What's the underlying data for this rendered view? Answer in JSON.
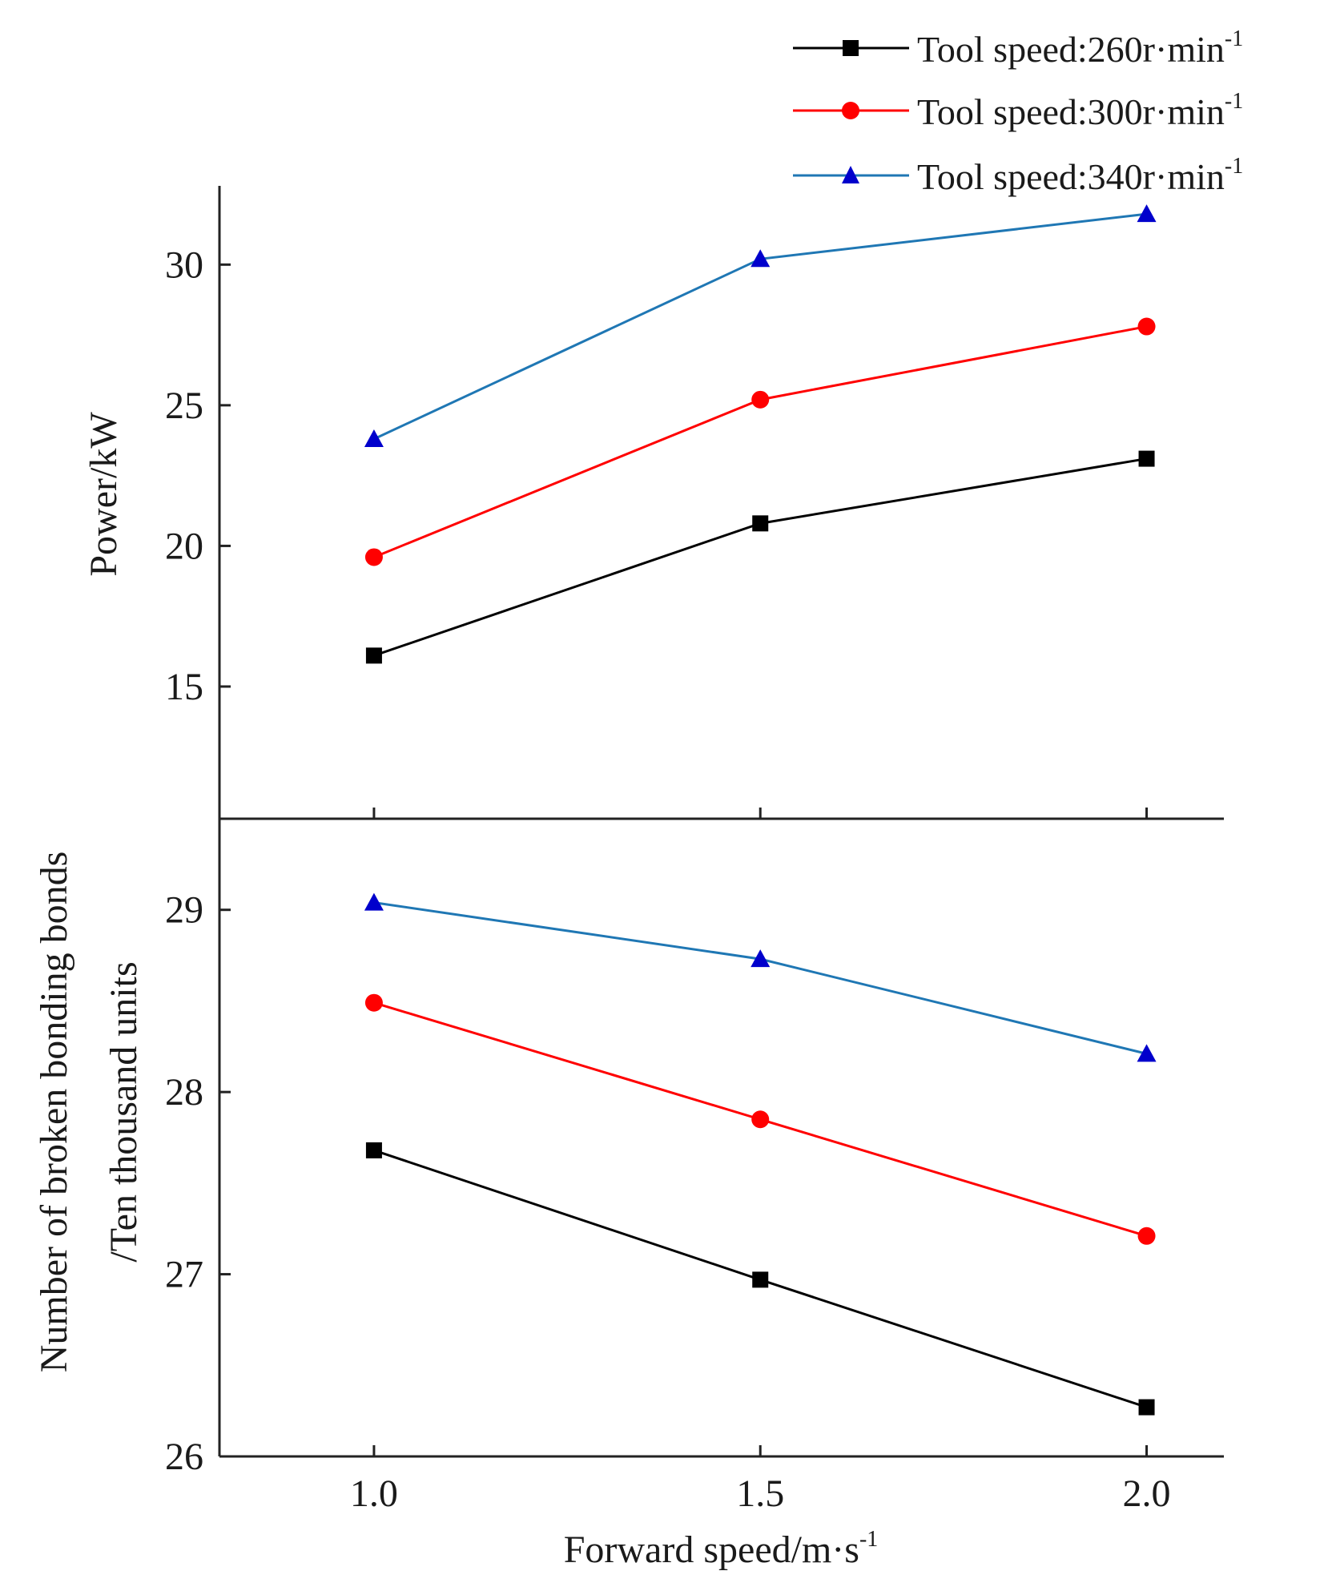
{
  "chart_data": [
    {
      "type": "line",
      "panel": "top",
      "x": [
        1.0,
        1.5,
        2.0
      ],
      "xlim": [
        0.8,
        2.1
      ],
      "ylim": [
        10.3,
        32.8
      ],
      "yticks": [
        15,
        20,
        25,
        30
      ],
      "ytick_labels": [
        "15",
        "20",
        "25",
        "30"
      ],
      "ylabel": "Power/kW",
      "series": [
        {
          "name": "Tool speed:260r·min-1",
          "marker": "square",
          "color": "#000000",
          "values": [
            16.1,
            20.8,
            23.1
          ]
        },
        {
          "name": "Tool speed:300r·min-1",
          "marker": "circle",
          "color": "#ff0000",
          "values": [
            19.6,
            25.2,
            27.8
          ]
        },
        {
          "name": "Tool speed:340r·min-1",
          "marker": "triangle",
          "color": "#0000cc",
          "line_color": "#1f77b4",
          "values": [
            23.8,
            30.2,
            31.8
          ]
        }
      ]
    },
    {
      "type": "line",
      "panel": "bottom",
      "x": [
        1.0,
        1.5,
        2.0
      ],
      "xlim": [
        0.8,
        2.1
      ],
      "xticks": [
        1.0,
        1.5,
        2.0
      ],
      "xtick_labels": [
        "1.0",
        "1.5",
        "2.0"
      ],
      "xlabel": "Forward speed/m·s",
      "xlabel_sup": "-1",
      "ylim": [
        26.0,
        29.5
      ],
      "yticks": [
        26,
        27,
        28,
        29
      ],
      "ytick_labels": [
        "26",
        "27",
        "28",
        "29"
      ],
      "ylabel_lines": [
        "Number of broken bonding bonds",
        "/Ten thousand units"
      ],
      "series": [
        {
          "name": "Tool speed:260r·min-1",
          "marker": "square",
          "color": "#000000",
          "values": [
            27.68,
            26.97,
            26.27
          ]
        },
        {
          "name": "Tool speed:300r·min-1",
          "marker": "circle",
          "color": "#ff0000",
          "values": [
            28.49,
            27.85,
            27.21
          ]
        },
        {
          "name": "Tool speed:340r·min-1",
          "marker": "triangle",
          "color": "#0000cc",
          "line_color": "#1f77b4",
          "values": [
            29.04,
            28.73,
            28.21
          ]
        }
      ]
    }
  ],
  "legend": {
    "placement": "top-right",
    "items": [
      {
        "text": "Tool speed:260r·min",
        "sup": "-1",
        "marker": "square",
        "color": "#000000",
        "line_color": "#000000"
      },
      {
        "text": "Tool speed:300r·min",
        "sup": "-1",
        "marker": "circle",
        "color": "#ff0000",
        "line_color": "#ff0000"
      },
      {
        "text": "Tool speed:340r·min",
        "sup": "-1",
        "marker": "triangle",
        "color": "#0000cc",
        "line_color": "#1f77b4"
      }
    ]
  }
}
